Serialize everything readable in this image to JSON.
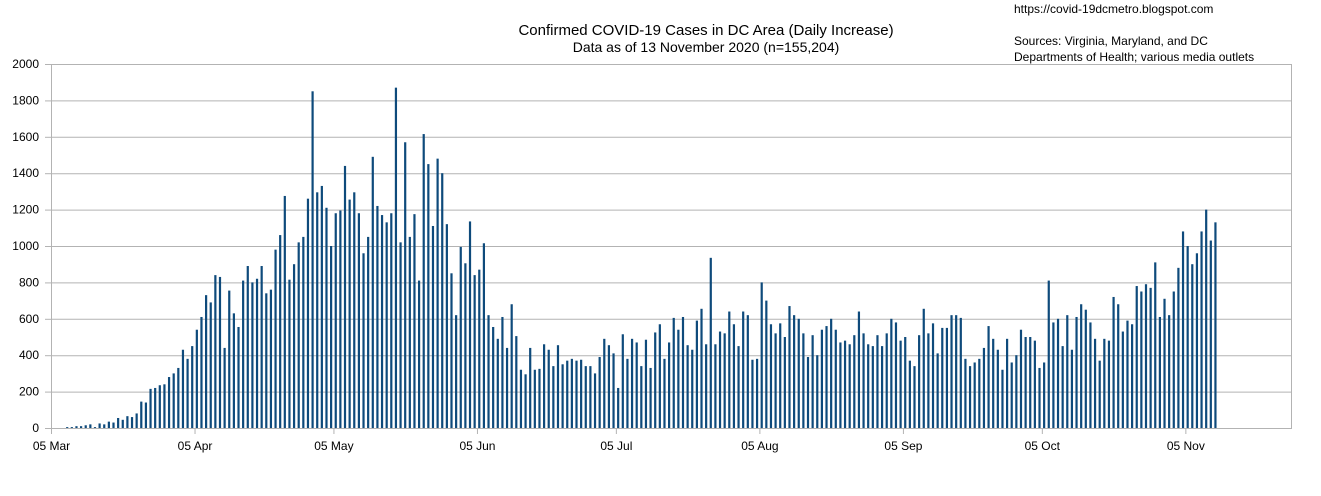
{
  "chart_data": {
    "type": "bar",
    "title": "Confirmed COVID-19 Cases in DC Area (Daily Increase)",
    "subtitle": "Data as of 13 November 2020 (n=155,204)",
    "source_url": "https://covid-19dcmetro.blogspot.com",
    "sources_line1": "Sources: Virginia, Maryland, and DC",
    "sources_line2": "Departments of Health; various media outlets",
    "xlabel": "",
    "ylabel": "",
    "ylim": [
      0,
      2000
    ],
    "y_ticks": [
      0,
      200,
      400,
      600,
      800,
      1000,
      1200,
      1400,
      1600,
      1800,
      2000
    ],
    "x_tick_labels": [
      "05 Mar",
      "05 Apr",
      "05 May",
      "05 Jun",
      "05 Jul",
      "05 Aug",
      "05 Sep",
      "05 Oct",
      "05 Nov"
    ],
    "x_tick_days": [
      0,
      31,
      61,
      92,
      122,
      153,
      184,
      214,
      245
    ],
    "grid": true,
    "bar_color": "#0e4a7b",
    "first_date": "2020-03-05",
    "last_date": "2020-11-13",
    "values": [
      0,
      0,
      0,
      5,
      5,
      10,
      10,
      15,
      20,
      5,
      25,
      20,
      35,
      30,
      55,
      45,
      65,
      60,
      80,
      145,
      140,
      215,
      220,
      235,
      240,
      280,
      300,
      330,
      430,
      380,
      450,
      540,
      610,
      730,
      690,
      840,
      830,
      440,
      755,
      630,
      555,
      810,
      890,
      800,
      820,
      890,
      740,
      760,
      980,
      1060,
      1275,
      815,
      900,
      1020,
      1050,
      1260,
      1850,
      1295,
      1330,
      1210,
      1000,
      1180,
      1195,
      1440,
      1255,
      1295,
      1180,
      960,
      1050,
      1490,
      1220,
      1170,
      1130,
      1180,
      1870,
      1020,
      1570,
      1050,
      1175,
      810,
      1615,
      1450,
      1110,
      1480,
      1400,
      1120,
      850,
      620,
      995,
      905,
      1135,
      840,
      870,
      1015,
      620,
      555,
      490,
      610,
      440,
      680,
      505,
      320,
      295,
      440,
      320,
      325,
      460,
      430,
      340,
      455,
      350,
      370,
      380,
      370,
      375,
      340,
      340,
      300,
      390,
      490,
      455,
      410,
      220,
      515,
      380,
      490,
      470,
      340,
      485,
      330,
      525,
      570,
      380,
      470,
      605,
      540,
      610,
      455,
      430,
      590,
      655,
      460,
      935,
      460,
      530,
      520,
      640,
      570,
      450,
      640,
      620,
      375,
      380,
      800,
      700,
      570,
      520,
      575,
      500,
      670,
      620,
      600,
      520,
      390,
      510,
      400,
      540,
      560,
      600,
      540,
      470,
      480,
      460,
      510,
      640,
      520,
      460,
      450,
      510,
      450,
      520,
      600,
      580,
      480,
      500,
      370,
      340,
      510,
      655,
      520,
      575,
      410,
      550,
      550,
      620,
      620,
      605,
      380,
      340,
      360,
      380,
      440,
      560,
      490,
      430,
      320,
      490,
      360,
      400,
      540,
      500,
      500,
      480,
      330,
      360,
      810,
      580,
      600,
      450,
      620,
      430,
      610,
      680,
      650,
      580,
      490,
      370,
      490,
      480,
      720,
      680,
      530,
      590,
      570,
      780,
      750,
      790,
      770,
      910,
      610,
      710,
      620,
      750,
      880,
      1080,
      1000,
      900,
      960,
      1080,
      1200,
      1030,
      1130
    ]
  }
}
